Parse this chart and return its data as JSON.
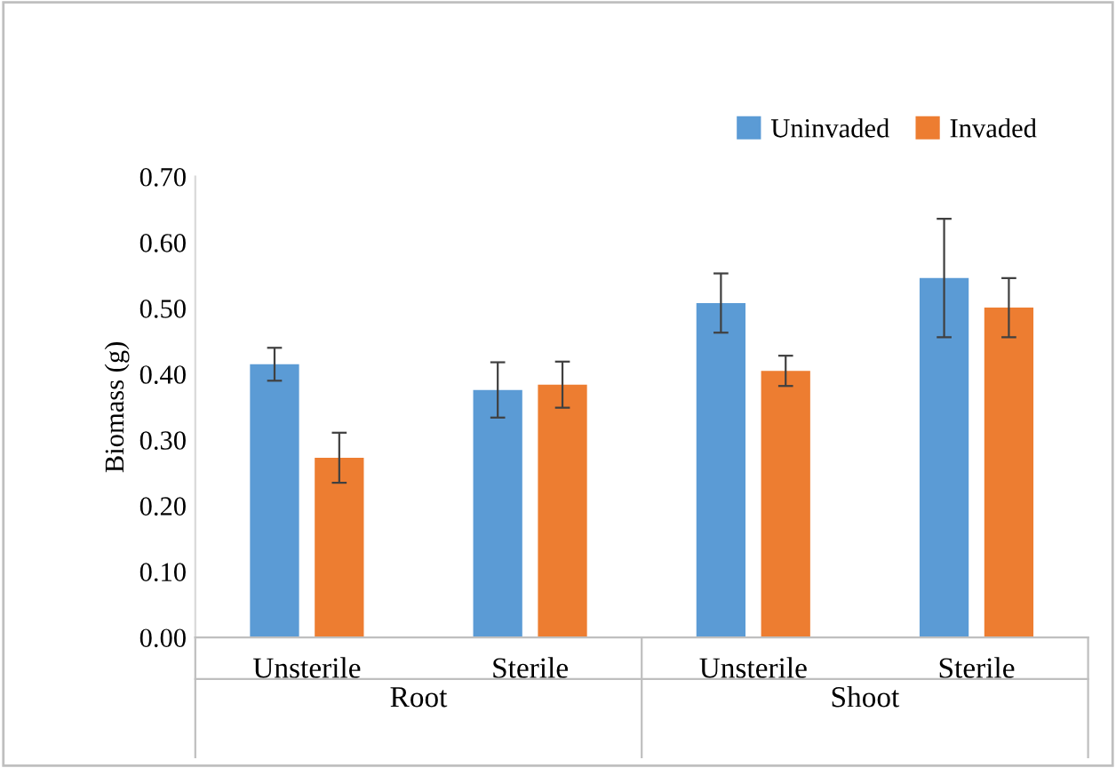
{
  "chart_data": {
    "type": "bar",
    "ylabel": "Biomass (g)",
    "categories": [
      "Unsterile",
      "Sterile",
      "Unsterile",
      "Sterile"
    ],
    "series": [
      {
        "name": "Uninvaded",
        "color": "#5b9bd5",
        "values": [
          0.415,
          0.376,
          0.508,
          0.546
        ],
        "errors": [
          0.025,
          0.042,
          0.045,
          0.09
        ]
      },
      {
        "name": "Invaded",
        "color": "#ed7d31",
        "values": [
          0.273,
          0.384,
          0.405,
          0.501
        ],
        "errors": [
          0.038,
          0.035,
          0.023,
          0.045
        ]
      }
    ],
    "ylim": [
      0,
      0.7
    ],
    "yticks": [
      {
        "value": 0,
        "label": "0.00"
      },
      {
        "value": 0.1,
        "label": "0.10"
      },
      {
        "value": 0.2,
        "label": "0.20"
      },
      {
        "value": 0.3,
        "label": "0.30"
      },
      {
        "value": 0.4,
        "label": "0.40"
      },
      {
        "value": 0.5,
        "label": "0.50"
      },
      {
        "value": 0.6,
        "label": "0.60"
      },
      {
        "value": 0.7,
        "label": "0.70"
      }
    ],
    "annotations": [
      "Root",
      "Shoot"
    ],
    "grid": false,
    "legend": "top right"
  }
}
